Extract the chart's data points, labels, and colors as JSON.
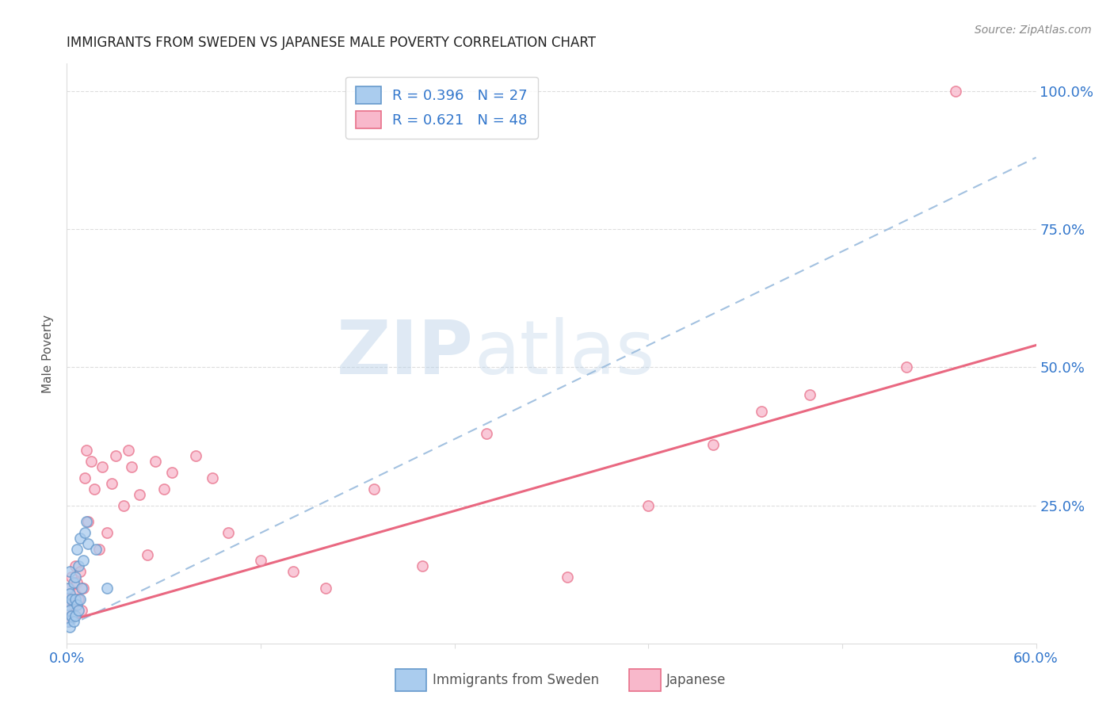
{
  "title": "IMMIGRANTS FROM SWEDEN VS JAPANESE MALE POVERTY CORRELATION CHART",
  "source": "Source: ZipAtlas.com",
  "ylabel": "Male Poverty",
  "right_yticks": [
    "100.0%",
    "75.0%",
    "50.0%",
    "25.0%"
  ],
  "right_ytick_vals": [
    1.0,
    0.75,
    0.5,
    0.25
  ],
  "watermark_zip": "ZIP",
  "watermark_atlas": "atlas",
  "legend_label_blue": "R = 0.396   N = 27",
  "legend_label_pink": "R = 0.621   N = 48",
  "blue_scatter_x": [
    0.001,
    0.001,
    0.001,
    0.002,
    0.002,
    0.002,
    0.002,
    0.003,
    0.003,
    0.004,
    0.004,
    0.005,
    0.005,
    0.005,
    0.006,
    0.006,
    0.007,
    0.007,
    0.008,
    0.008,
    0.009,
    0.01,
    0.011,
    0.012,
    0.013,
    0.018,
    0.025
  ],
  "blue_scatter_y": [
    0.04,
    0.07,
    0.1,
    0.03,
    0.06,
    0.09,
    0.13,
    0.05,
    0.08,
    0.04,
    0.11,
    0.05,
    0.08,
    0.12,
    0.07,
    0.17,
    0.06,
    0.14,
    0.08,
    0.19,
    0.1,
    0.15,
    0.2,
    0.22,
    0.18,
    0.17,
    0.1
  ],
  "pink_scatter_x": [
    0.001,
    0.001,
    0.002,
    0.002,
    0.003,
    0.003,
    0.004,
    0.005,
    0.005,
    0.006,
    0.007,
    0.008,
    0.009,
    0.01,
    0.011,
    0.012,
    0.013,
    0.015,
    0.017,
    0.02,
    0.022,
    0.025,
    0.028,
    0.03,
    0.035,
    0.038,
    0.04,
    0.045,
    0.05,
    0.055,
    0.06,
    0.065,
    0.08,
    0.09,
    0.1,
    0.12,
    0.14,
    0.16,
    0.19,
    0.22,
    0.26,
    0.31,
    0.36,
    0.4,
    0.43,
    0.46,
    0.52,
    0.55
  ],
  "pink_scatter_y": [
    0.04,
    0.08,
    0.06,
    0.1,
    0.05,
    0.12,
    0.07,
    0.09,
    0.14,
    0.11,
    0.08,
    0.13,
    0.06,
    0.1,
    0.3,
    0.35,
    0.22,
    0.33,
    0.28,
    0.17,
    0.32,
    0.2,
    0.29,
    0.34,
    0.25,
    0.35,
    0.32,
    0.27,
    0.16,
    0.33,
    0.28,
    0.31,
    0.34,
    0.3,
    0.2,
    0.15,
    0.13,
    0.1,
    0.28,
    0.14,
    0.38,
    0.12,
    0.25,
    0.36,
    0.42,
    0.45,
    0.5,
    1.0
  ],
  "blue_line_x": [
    0.0,
    0.6
  ],
  "blue_line_y": [
    0.03,
    0.88
  ],
  "pink_line_x": [
    0.0,
    0.6
  ],
  "pink_line_y": [
    0.04,
    0.54
  ],
  "xlim": [
    0.0,
    0.6
  ],
  "ylim": [
    0.0,
    1.05
  ],
  "blue_scatter_face": "#aaccee",
  "blue_scatter_edge": "#6699cc",
  "pink_scatter_face": "#f8b8cb",
  "pink_scatter_edge": "#e8708a",
  "blue_line_color": "#99bbdd",
  "pink_line_color": "#e8607a",
  "scatter_alpha": 0.75,
  "scatter_size": 90,
  "grid_color": "#dddddd",
  "title_fontsize": 12,
  "source_fontsize": 10,
  "axis_label_color": "#555555",
  "tick_color": "#3377cc"
}
